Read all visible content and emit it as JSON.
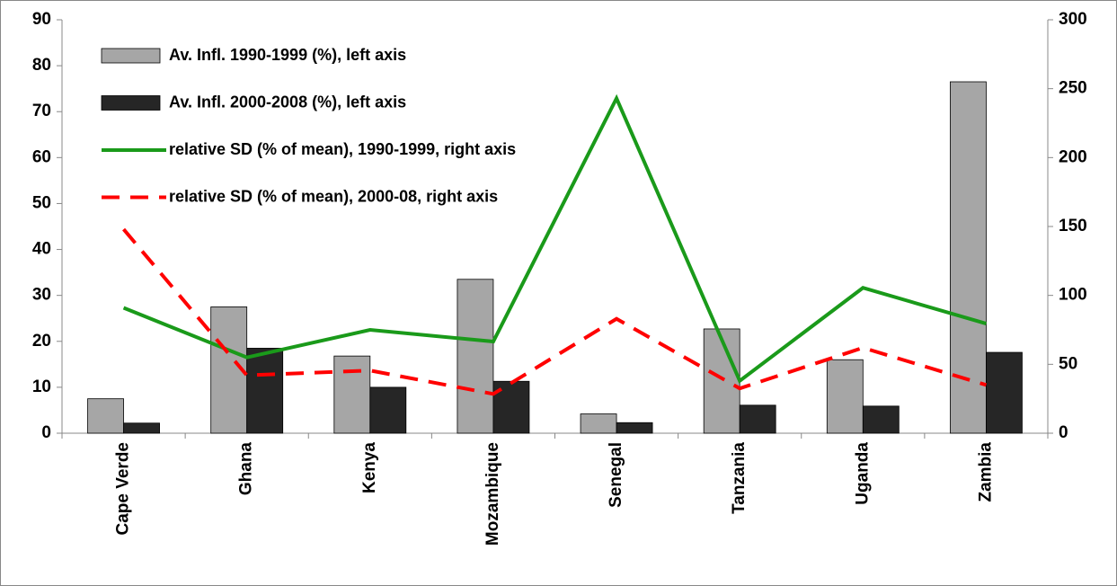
{
  "chart_data": {
    "type": "bar",
    "categories": [
      "Cape Verde",
      "Ghana",
      "Kenya",
      "Mozambique",
      "Senegal",
      "Tanzania",
      "Uganda",
      "Zambia"
    ],
    "series": [
      {
        "name": "Av. Infl. 1990-1999 (%), left axis",
        "type": "bar",
        "color": "#a6a6a6",
        "values": [
          7.5,
          27.5,
          16.8,
          33.5,
          4.2,
          22.7,
          16,
          76.5
        ]
      },
      {
        "name": "Av. Infl. 2000-2008 (%), left axis",
        "type": "bar",
        "color": "#262626",
        "values": [
          2.2,
          18.5,
          10,
          11.3,
          2.3,
          6.1,
          5.9,
          17.6
        ]
      },
      {
        "name": "relative SD (% of mean), 1990-1999, right axis",
        "type": "line",
        "axis": "y2",
        "color": "#1a9a1a",
        "dashed": false,
        "values": [
          91,
          55,
          75,
          66.5,
          243,
          38,
          105.5,
          79.5
        ]
      },
      {
        "name": "relative SD (% of mean), 2000-08, right axis",
        "type": "line",
        "axis": "y2",
        "color": "#ff0000",
        "dashed": true,
        "values": [
          148,
          42,
          45.5,
          28.5,
          83,
          32.5,
          62,
          35
        ]
      }
    ],
    "ylim": [
      0,
      90
    ],
    "yticks": [
      0,
      10,
      20,
      30,
      40,
      50,
      60,
      70,
      80,
      90
    ],
    "y2lim": [
      0,
      300
    ],
    "y2ticks": [
      0,
      50,
      100,
      150,
      200,
      250,
      300
    ],
    "legend": "top-left"
  }
}
